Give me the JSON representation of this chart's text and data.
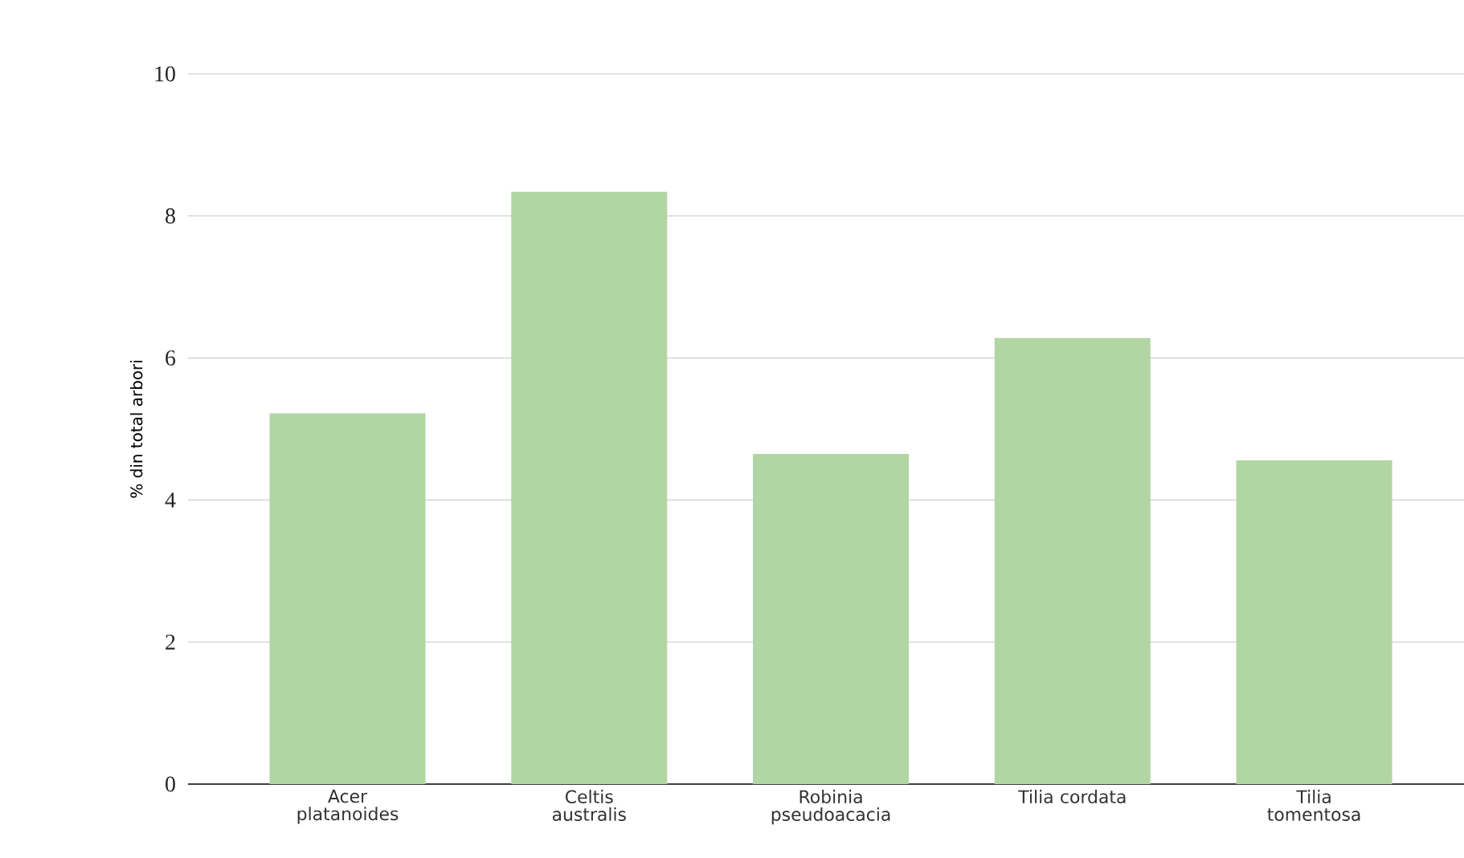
{
  "chart_data": {
    "type": "bar",
    "ylabel": "% din total arbori",
    "categories": [
      "Acer platanoides",
      "Celtis australis",
      "Robinia pseudoacacia",
      "Tilia cordata",
      "Tilia tomentosa"
    ],
    "values": [
      5.22,
      8.34,
      4.65,
      6.28,
      4.56
    ],
    "color": "#b2d5a4",
    "ylim": [
      0,
      10
    ],
    "yticks": [
      0,
      2,
      4,
      6,
      8,
      10
    ],
    "grid": "y"
  }
}
